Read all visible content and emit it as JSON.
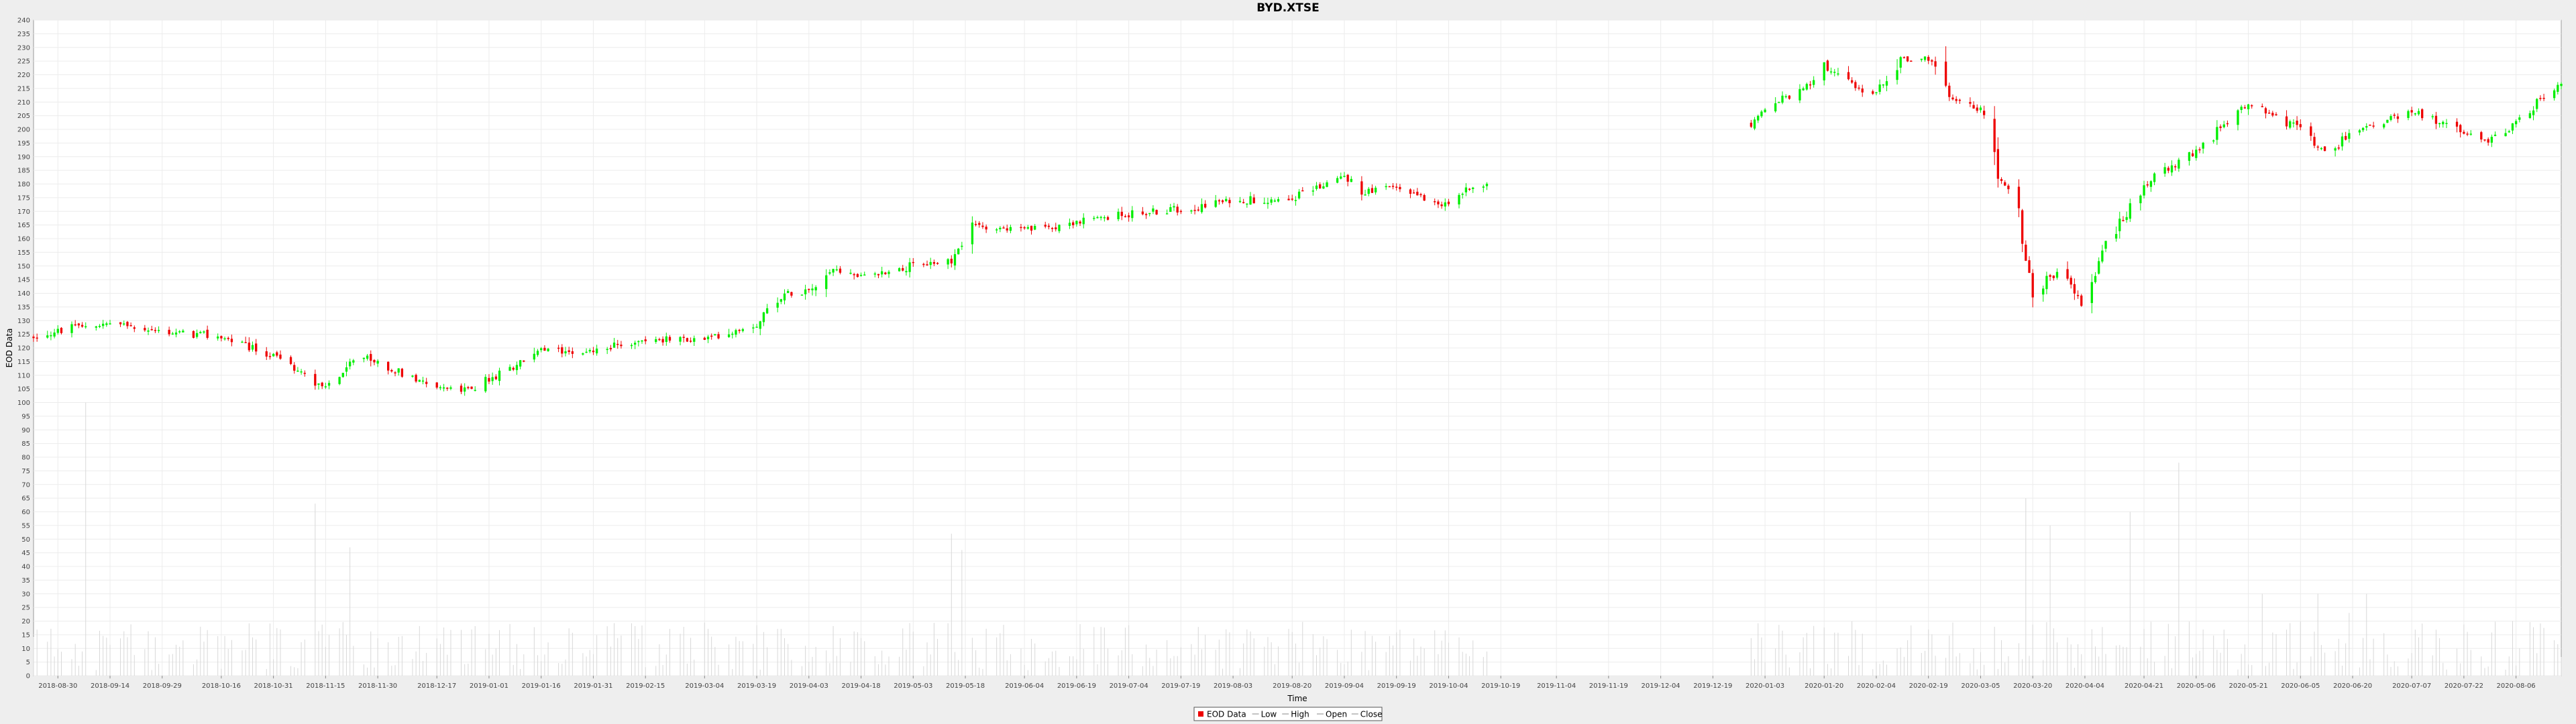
{
  "window": {
    "title": "BYD.XTSE"
  },
  "colors": {
    "background": "#eeeeee",
    "plot_background": "#ffffff",
    "gridline": "#ececec",
    "up": "#00ee00",
    "down": "#ee0000",
    "volume": "#d8d8d8"
  },
  "chart_data": {
    "type": "candlestick",
    "title": "BYD.XTSE",
    "xlabel": "Time",
    "ylabel": "EOD Data",
    "ylim": [
      0,
      240
    ],
    "y_tick_step": 5,
    "x_range": [
      "2018-08-23",
      "2020-08-19"
    ],
    "x_tick_labels": [
      "2018-08-30",
      "2018-09-14",
      "2018-09-29",
      "2018-10-16",
      "2018-10-31",
      "2018-11-15",
      "2018-11-30",
      "2018-12-17",
      "2019-01-01",
      "2019-01-16",
      "2019-01-31",
      "2019-02-15",
      "2019-03-04",
      "2019-03-19",
      "2019-04-03",
      "2019-04-18",
      "2019-05-03",
      "2019-05-18",
      "2019-06-04",
      "2019-06-19",
      "2019-07-04",
      "2019-07-19",
      "2019-08-03",
      "2019-08-20",
      "2019-09-04",
      "2019-09-19",
      "2019-10-04",
      "2019-10-19",
      "2019-11-04",
      "2019-11-19",
      "2019-12-04",
      "2019-12-19",
      "2020-01-03",
      "2020-01-20",
      "2020-02-04",
      "2020-02-19",
      "2020-03-05",
      "2020-03-20",
      "2020-04-04",
      "2020-04-21",
      "2020-05-06",
      "2020-05-21",
      "2020-06-05",
      "2020-06-20",
      "2020-07-07",
      "2020-07-22",
      "2020-08-06"
    ],
    "legend": {
      "position": "bottom-center",
      "entries": [
        "EOD Data",
        "Low",
        "High",
        "Open",
        "Close"
      ]
    },
    "grid": true,
    "price_anchors": [
      [
        "2018-08-23",
        124
      ],
      [
        "2018-09-06",
        128
      ],
      [
        "2018-09-14",
        129
      ],
      [
        "2018-09-29",
        126
      ],
      [
        "2018-10-16",
        124
      ],
      [
        "2018-10-31",
        117
      ],
      [
        "2018-11-10",
        109
      ],
      [
        "2018-11-15",
        106
      ],
      [
        "2018-11-25",
        117
      ],
      [
        "2018-12-17",
        106
      ],
      [
        "2018-12-24",
        104
      ],
      [
        "2019-01-01",
        108
      ],
      [
        "2019-01-16",
        119
      ],
      [
        "2019-01-31",
        119
      ],
      [
        "2019-02-15",
        123
      ],
      [
        "2019-03-04",
        123
      ],
      [
        "2019-03-19",
        129
      ],
      [
        "2019-03-25",
        139
      ],
      [
        "2019-04-03",
        142
      ],
      [
        "2019-04-10",
        149
      ],
      [
        "2019-04-18",
        146
      ],
      [
        "2019-05-03",
        150
      ],
      [
        "2019-05-14",
        152
      ],
      [
        "2019-05-20",
        165
      ],
      [
        "2019-06-04",
        163
      ],
      [
        "2019-06-19",
        166
      ],
      [
        "2019-07-04",
        169
      ],
      [
        "2019-07-19",
        171
      ],
      [
        "2019-08-03",
        174
      ],
      [
        "2019-08-20",
        175
      ],
      [
        "2019-09-04",
        183
      ],
      [
        "2019-09-10",
        177
      ],
      [
        "2019-09-19",
        179
      ],
      [
        "2019-10-04",
        172
      ],
      [
        "2019-10-10",
        179
      ],
      [
        "2019-10-15",
        180
      ]
    ],
    "price_anchors_2": [
      [
        "2019-12-30",
        202
      ],
      [
        "2020-01-06",
        210
      ],
      [
        "2020-01-14",
        214
      ],
      [
        "2020-01-20",
        224
      ],
      [
        "2020-01-27",
        216
      ],
      [
        "2020-02-04",
        213
      ],
      [
        "2020-02-10",
        225
      ],
      [
        "2020-02-19",
        226
      ],
      [
        "2020-02-24",
        213
      ],
      [
        "2020-03-05",
        207
      ],
      [
        "2020-03-10",
        185
      ],
      [
        "2020-03-16",
        168
      ],
      [
        "2020-03-20",
        140
      ],
      [
        "2020-03-27",
        148
      ],
      [
        "2020-04-04",
        135
      ],
      [
        "2020-04-10",
        158
      ],
      [
        "2020-04-21",
        180
      ],
      [
        "2020-05-06",
        192
      ],
      [
        "2020-05-21",
        210
      ],
      [
        "2020-06-05",
        200
      ],
      [
        "2020-06-12",
        192
      ],
      [
        "2020-06-20",
        198
      ],
      [
        "2020-07-07",
        207
      ],
      [
        "2020-07-22",
        199
      ],
      [
        "2020-07-29",
        196
      ],
      [
        "2020-08-06",
        202
      ],
      [
        "2020-08-12",
        210
      ],
      [
        "2020-08-19",
        216
      ]
    ],
    "volume_range": [
      0,
      25
    ],
    "volume_spikes": [
      [
        "2018-09-07",
        100
      ],
      [
        "2018-11-12",
        63
      ],
      [
        "2018-11-22",
        47
      ],
      [
        "2019-05-14",
        52
      ],
      [
        "2019-05-17",
        46
      ],
      [
        "2019-09-01",
        20
      ],
      [
        "2020-03-18",
        65
      ],
      [
        "2020-03-25",
        55
      ],
      [
        "2020-04-17",
        60
      ],
      [
        "2020-05-01",
        78
      ],
      [
        "2020-05-25",
        30
      ],
      [
        "2020-06-10",
        30
      ],
      [
        "2020-06-19",
        23
      ],
      [
        "2020-06-24",
        30
      ],
      [
        "2020-08-05",
        20
      ]
    ]
  }
}
